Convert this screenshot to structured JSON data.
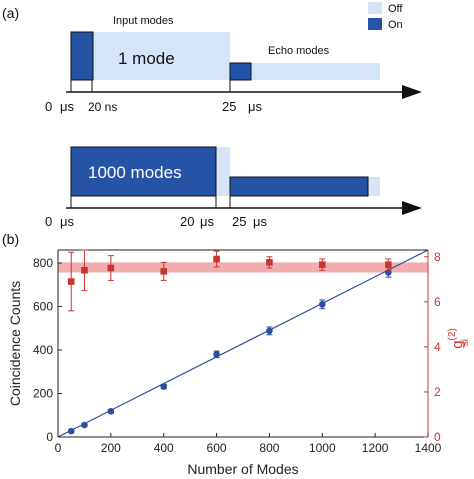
{
  "panel_a": {
    "label": "(a)",
    "legend": [
      {
        "label": "Off",
        "color": "#d6e4f7"
      },
      {
        "label": "On",
        "color": "#2553a6"
      }
    ],
    "top": {
      "input_label": "Input modes",
      "echo_label": "Echo modes",
      "mode_label": "1 mode",
      "ticks": [
        "0",
        "μs",
        "20 ns",
        "25",
        "μs"
      ]
    },
    "bottom": {
      "mode_label": "1000 modes",
      "ticks": [
        "0",
        "μs",
        "20",
        "μs",
        "25",
        "μs"
      ]
    }
  },
  "panel_b": {
    "label": "(b)"
  },
  "colors": {
    "on": "#2553a6",
    "off": "#d6e4f7",
    "counts": "#2a4f9e",
    "g2": "#cc3333",
    "band": "#f0a0a0"
  },
  "chart_data": {
    "type": "scatter",
    "xlabel": "Number of Modes",
    "xlim": [
      0,
      1400
    ],
    "x_ticks": [
      0,
      200,
      400,
      600,
      800,
      1000,
      1200,
      1400
    ],
    "ylabel_left": "Coincidence Counts",
    "ylim_left": [
      0,
      860
    ],
    "y_ticks_left": [
      0,
      200,
      400,
      600,
      800
    ],
    "ylabel_right_main": "g",
    "ylabel_right_sup": "(2)",
    "ylabel_right_sub": "si",
    "ylim_right": [
      0,
      8.3
    ],
    "y_ticks_right": [
      0,
      2,
      4,
      6,
      8
    ],
    "series": [
      {
        "axis": "left",
        "marker": "circle",
        "x": [
          50,
          100,
          200,
          400,
          600,
          800,
          1000,
          1250
        ],
        "y": [
          27,
          55,
          118,
          232,
          380,
          488,
          610,
          757
        ],
        "err": [
          5,
          6,
          8,
          10,
          15,
          18,
          20,
          22
        ]
      },
      {
        "axis": "right",
        "marker": "square",
        "x": [
          50,
          100,
          200,
          400,
          600,
          800,
          1000,
          1250
        ],
        "y": [
          6.9,
          7.4,
          7.5,
          7.35,
          7.9,
          7.75,
          7.65,
          7.65
        ],
        "err": [
          1.3,
          0.9,
          0.55,
          0.4,
          0.35,
          0.25,
          0.25,
          0.25
        ]
      }
    ],
    "fit_line": {
      "axis": "left",
      "x": [
        0,
        1400
      ],
      "y": [
        0,
        860
      ]
    },
    "band": {
      "axis": "right",
      "y_low": 7.3,
      "y_high": 7.75
    }
  }
}
